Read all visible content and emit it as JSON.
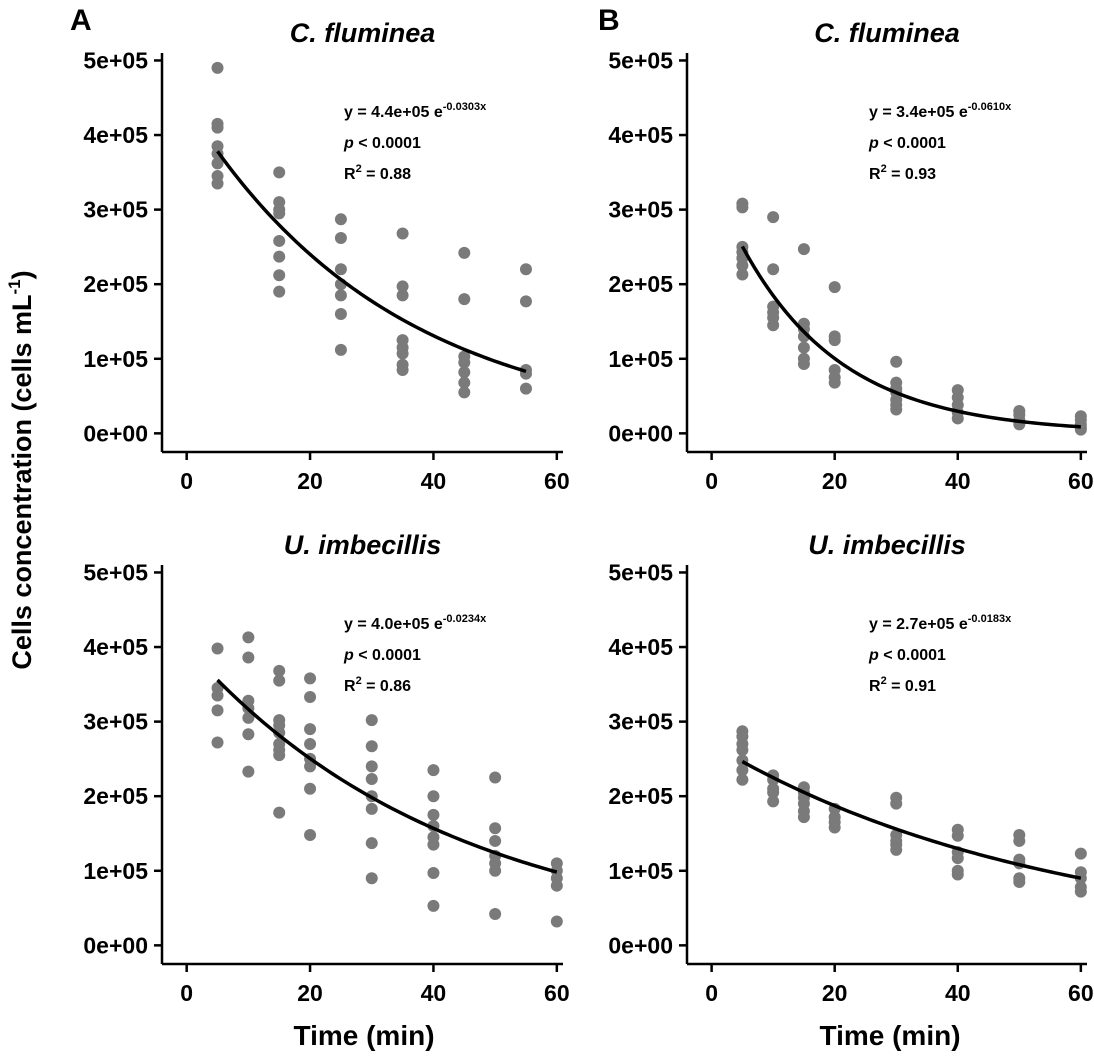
{
  "figure": {
    "panel_labels": [
      "A",
      "B"
    ],
    "ylabel_main": "Cells concentration (cells mL",
    "ylabel_sup": "-1",
    "ylabel_close": ")",
    "xlabel": "Time (min)",
    "colors": {
      "points": "#7a7a7a",
      "curve": "#000000",
      "axes": "#000000"
    }
  },
  "chart_data": [
    {
      "type": "scatter",
      "panel": "A",
      "title": "C. fluminea",
      "xlabel": "",
      "ylabel": "",
      "xticks": [
        "0",
        "20",
        "40",
        "60"
      ],
      "yticks": [
        "0e+00",
        "1e+05",
        "2e+05",
        "3e+05",
        "4e+05",
        "5e+05"
      ],
      "xlim": [
        -4,
        61
      ],
      "ylim": [
        -25000,
        510000
      ],
      "grid": false,
      "points": [
        [
          5,
          490000
        ],
        [
          5,
          415000
        ],
        [
          5,
          410000
        ],
        [
          5,
          385000
        ],
        [
          5,
          375000
        ],
        [
          5,
          362000
        ],
        [
          5,
          345000
        ],
        [
          5,
          335000
        ],
        [
          15,
          350000
        ],
        [
          15,
          310000
        ],
        [
          15,
          300000
        ],
        [
          15,
          295000
        ],
        [
          15,
          258000
        ],
        [
          15,
          237000
        ],
        [
          15,
          212000
        ],
        [
          15,
          190000
        ],
        [
          25,
          287000
        ],
        [
          25,
          262000
        ],
        [
          25,
          220000
        ],
        [
          25,
          200000
        ],
        [
          25,
          185000
        ],
        [
          25,
          160000
        ],
        [
          25,
          112000
        ],
        [
          35,
          268000
        ],
        [
          35,
          197000
        ],
        [
          35,
          185000
        ],
        [
          35,
          125000
        ],
        [
          35,
          115000
        ],
        [
          35,
          107000
        ],
        [
          35,
          92000
        ],
        [
          35,
          85000
        ],
        [
          45,
          242000
        ],
        [
          45,
          180000
        ],
        [
          45,
          103000
        ],
        [
          45,
          95000
        ],
        [
          45,
          82000
        ],
        [
          45,
          68000
        ],
        [
          45,
          55000
        ],
        [
          55,
          220000
        ],
        [
          55,
          177000
        ],
        [
          55,
          85000
        ],
        [
          55,
          80000
        ],
        [
          55,
          60000
        ]
      ],
      "fit": {
        "a": 440000,
        "b": -0.0303,
        "x_range": [
          5,
          55
        ]
      },
      "annotation": {
        "eq_prefix": "y = 4.4e+05 e",
        "eq_exp": "-0.0303x",
        "p_sym": "p",
        "p_rest": " < 0.0001",
        "r_pre": "R",
        "r_sup": "2",
        "r_rest": " = 0.88"
      }
    },
    {
      "type": "scatter",
      "panel": "B",
      "title": "C. fluminea",
      "xlabel": "",
      "ylabel": "",
      "xticks": [
        "0",
        "20",
        "40",
        "60"
      ],
      "yticks": [
        "0e+00",
        "1e+05",
        "2e+05",
        "3e+05",
        "4e+05",
        "5e+05"
      ],
      "xlim": [
        -4,
        61
      ],
      "ylim": [
        -25000,
        510000
      ],
      "grid": false,
      "points": [
        [
          5,
          308000
        ],
        [
          5,
          303000
        ],
        [
          5,
          250000
        ],
        [
          5,
          243000
        ],
        [
          5,
          235000
        ],
        [
          5,
          225000
        ],
        [
          5,
          213000
        ],
        [
          10,
          290000
        ],
        [
          10,
          220000
        ],
        [
          10,
          170000
        ],
        [
          10,
          162000
        ],
        [
          10,
          155000
        ],
        [
          10,
          145000
        ],
        [
          15,
          247000
        ],
        [
          15,
          147000
        ],
        [
          15,
          140000
        ],
        [
          15,
          130000
        ],
        [
          15,
          115000
        ],
        [
          15,
          100000
        ],
        [
          15,
          93000
        ],
        [
          20,
          196000
        ],
        [
          20,
          130000
        ],
        [
          20,
          125000
        ],
        [
          20,
          85000
        ],
        [
          20,
          75000
        ],
        [
          20,
          68000
        ],
        [
          30,
          96000
        ],
        [
          30,
          68000
        ],
        [
          30,
          60000
        ],
        [
          30,
          55000
        ],
        [
          30,
          45000
        ],
        [
          30,
          38000
        ],
        [
          30,
          32000
        ],
        [
          40,
          58000
        ],
        [
          40,
          48000
        ],
        [
          40,
          38000
        ],
        [
          40,
          28000
        ],
        [
          40,
          20000
        ],
        [
          50,
          30000
        ],
        [
          50,
          25000
        ],
        [
          50,
          18000
        ],
        [
          50,
          12000
        ],
        [
          60,
          23000
        ],
        [
          60,
          18000
        ],
        [
          60,
          12000
        ],
        [
          60,
          8000
        ],
        [
          60,
          5000
        ]
      ],
      "fit": {
        "a": 340000,
        "b": -0.061,
        "x_range": [
          5,
          60
        ]
      },
      "annotation": {
        "eq_prefix": "y = 3.4e+05 e",
        "eq_exp": "-0.0610x",
        "p_sym": "p",
        "p_rest": " < 0.0001",
        "r_pre": "R",
        "r_sup": "2",
        "r_rest": " = 0.93"
      }
    },
    {
      "type": "scatter",
      "panel": "A",
      "title": "U. imbecillis",
      "xlabel": "Time (min)",
      "ylabel": "",
      "xticks": [
        "0",
        "20",
        "40",
        "60"
      ],
      "yticks": [
        "0e+00",
        "1e+05",
        "2e+05",
        "3e+05",
        "4e+05",
        "5e+05"
      ],
      "xlim": [
        -4,
        61
      ],
      "ylim": [
        -25000,
        510000
      ],
      "grid": false,
      "points": [
        [
          5,
          398000
        ],
        [
          5,
          345000
        ],
        [
          5,
          335000
        ],
        [
          5,
          315000
        ],
        [
          5,
          272000
        ],
        [
          10,
          413000
        ],
        [
          10,
          386000
        ],
        [
          10,
          328000
        ],
        [
          10,
          318000
        ],
        [
          10,
          305000
        ],
        [
          10,
          283000
        ],
        [
          10,
          233000
        ],
        [
          15,
          368000
        ],
        [
          15,
          355000
        ],
        [
          15,
          302000
        ],
        [
          15,
          295000
        ],
        [
          15,
          285000
        ],
        [
          15,
          270000
        ],
        [
          15,
          262000
        ],
        [
          15,
          255000
        ],
        [
          15,
          178000
        ],
        [
          20,
          358000
        ],
        [
          20,
          333000
        ],
        [
          20,
          290000
        ],
        [
          20,
          270000
        ],
        [
          20,
          250000
        ],
        [
          20,
          240000
        ],
        [
          20,
          210000
        ],
        [
          20,
          148000
        ],
        [
          30,
          302000
        ],
        [
          30,
          267000
        ],
        [
          30,
          240000
        ],
        [
          30,
          223000
        ],
        [
          30,
          200000
        ],
        [
          30,
          183000
        ],
        [
          30,
          137000
        ],
        [
          30,
          90000
        ],
        [
          40,
          235000
        ],
        [
          40,
          200000
        ],
        [
          40,
          175000
        ],
        [
          40,
          160000
        ],
        [
          40,
          145000
        ],
        [
          40,
          135000
        ],
        [
          40,
          97000
        ],
        [
          40,
          53000
        ],
        [
          50,
          225000
        ],
        [
          50,
          157000
        ],
        [
          50,
          140000
        ],
        [
          50,
          120000
        ],
        [
          50,
          110000
        ],
        [
          50,
          100000
        ],
        [
          50,
          42000
        ],
        [
          60,
          110000
        ],
        [
          60,
          100000
        ],
        [
          60,
          90000
        ],
        [
          60,
          80000
        ],
        [
          60,
          32000
        ]
      ],
      "fit": {
        "a": 400000,
        "b": -0.0234,
        "x_range": [
          5,
          60
        ]
      },
      "annotation": {
        "eq_prefix": "y = 4.0e+05 e",
        "eq_exp": "-0.0234x",
        "p_sym": "p",
        "p_rest": " < 0.0001",
        "r_pre": "R",
        "r_sup": "2",
        "r_rest": " = 0.86"
      }
    },
    {
      "type": "scatter",
      "panel": "B",
      "title": "U. imbecillis",
      "xlabel": "Time (min)",
      "ylabel": "",
      "xticks": [
        "0",
        "20",
        "40",
        "60"
      ],
      "yticks": [
        "0e+00",
        "1e+05",
        "2e+05",
        "3e+05",
        "4e+05",
        "5e+05"
      ],
      "xlim": [
        -4,
        61
      ],
      "ylim": [
        -25000,
        510000
      ],
      "grid": false,
      "points": [
        [
          5,
          287000
        ],
        [
          5,
          280000
        ],
        [
          5,
          270000
        ],
        [
          5,
          262000
        ],
        [
          5,
          248000
        ],
        [
          5,
          235000
        ],
        [
          5,
          222000
        ],
        [
          10,
          228000
        ],
        [
          10,
          222000
        ],
        [
          10,
          210000
        ],
        [
          10,
          205000
        ],
        [
          10,
          193000
        ],
        [
          15,
          212000
        ],
        [
          15,
          205000
        ],
        [
          15,
          198000
        ],
        [
          15,
          190000
        ],
        [
          15,
          180000
        ],
        [
          15,
          172000
        ],
        [
          20,
          183000
        ],
        [
          20,
          172000
        ],
        [
          20,
          165000
        ],
        [
          20,
          158000
        ],
        [
          30,
          198000
        ],
        [
          30,
          190000
        ],
        [
          30,
          148000
        ],
        [
          30,
          140000
        ],
        [
          30,
          135000
        ],
        [
          30,
          128000
        ],
        [
          40,
          155000
        ],
        [
          40,
          147000
        ],
        [
          40,
          125000
        ],
        [
          40,
          117000
        ],
        [
          40,
          100000
        ],
        [
          40,
          95000
        ],
        [
          50,
          148000
        ],
        [
          50,
          140000
        ],
        [
          50,
          115000
        ],
        [
          50,
          110000
        ],
        [
          50,
          90000
        ],
        [
          50,
          85000
        ],
        [
          60,
          123000
        ],
        [
          60,
          98000
        ],
        [
          60,
          90000
        ],
        [
          60,
          78000
        ],
        [
          60,
          72000
        ]
      ],
      "fit": {
        "a": 270000,
        "b": -0.0183,
        "x_range": [
          5,
          60
        ]
      },
      "annotation": {
        "eq_prefix": "y = 2.7e+05 e",
        "eq_exp": "-0.0183x",
        "p_sym": "p",
        "p_rest": " < 0.0001",
        "r_pre": "R",
        "r_sup": "2",
        "r_rest": " = 0.91"
      }
    }
  ]
}
